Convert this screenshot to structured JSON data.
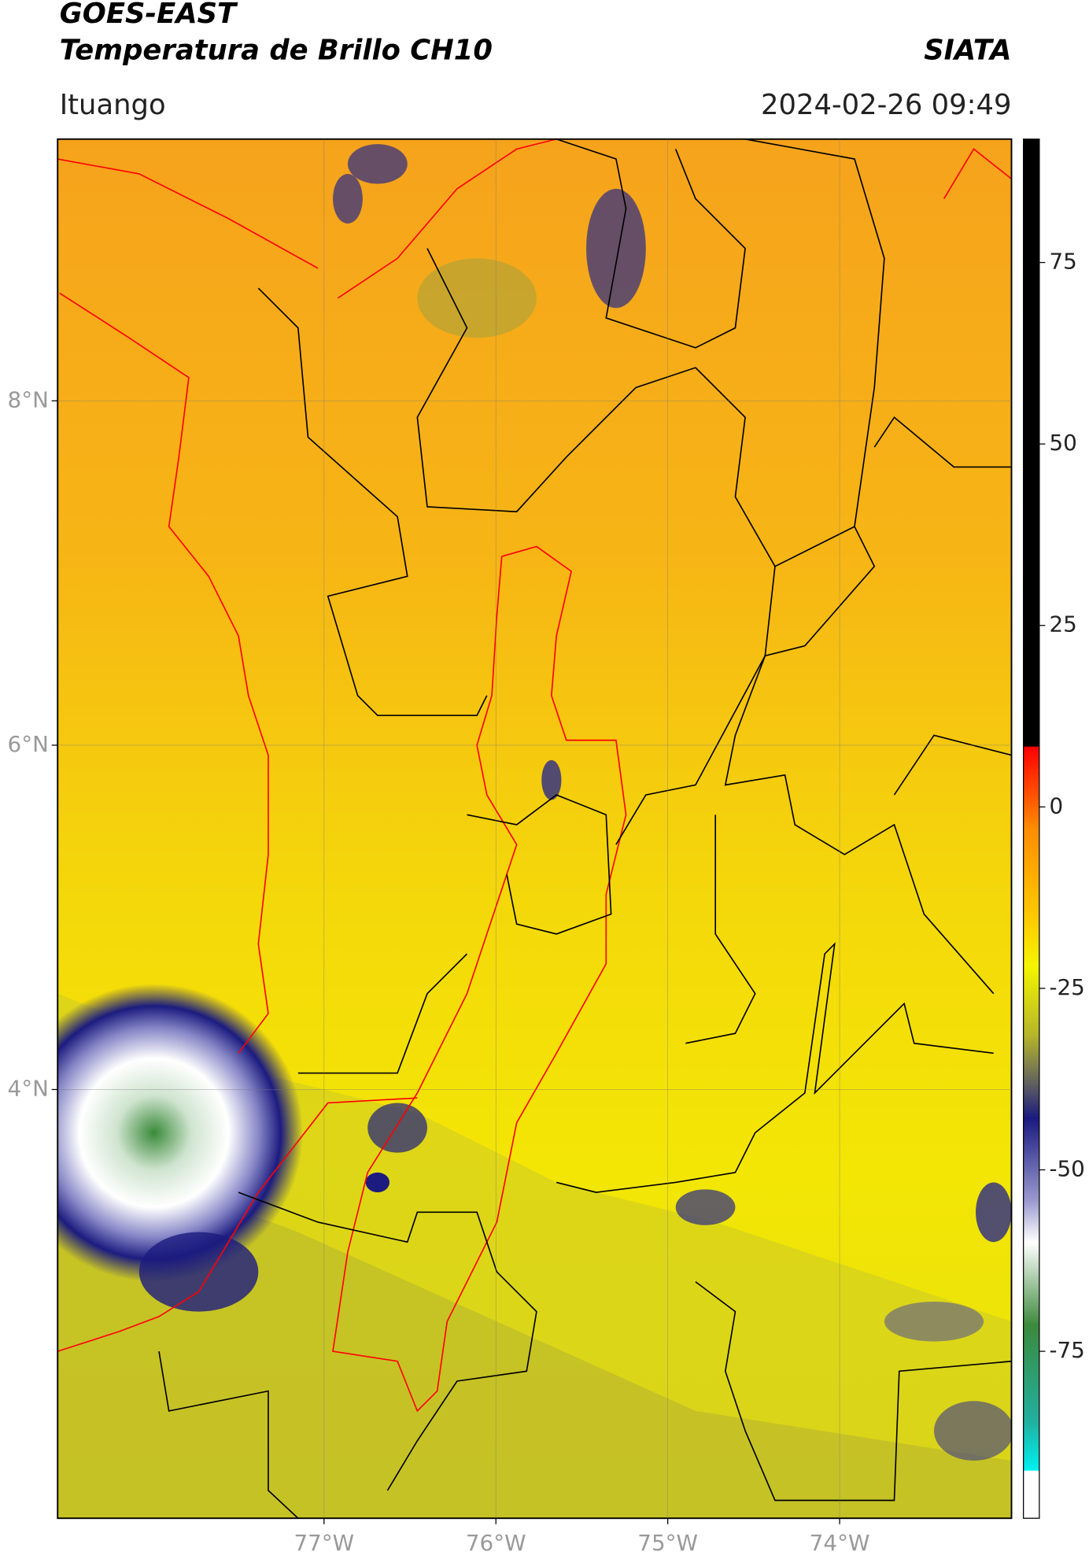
{
  "chart_data": {
    "type": "map",
    "title": "GOES-EAST",
    "subtitle": "Temperatura de Brillo CH10",
    "source": "SIATA",
    "region": "Ituango",
    "timestamp": "2024-02-26 09:49",
    "xlim": [
      -78.55,
      -73.0
    ],
    "ylim": [
      1.51,
      9.52
    ],
    "xticks": [
      {
        "value": -77,
        "label": "77°W"
      },
      {
        "value": -76,
        "label": "76°W"
      },
      {
        "value": -75,
        "label": "75°W"
      },
      {
        "value": -74,
        "label": "74°W"
      }
    ],
    "yticks": [
      {
        "value": 8,
        "label": "8°N"
      },
      {
        "value": 6,
        "label": "6°N"
      },
      {
        "value": 4,
        "label": "4°N"
      }
    ],
    "grid": true,
    "clim": [
      -98,
      92
    ],
    "cticks": [
      75,
      50,
      25,
      0,
      -25,
      -50,
      -75
    ]
  }
}
